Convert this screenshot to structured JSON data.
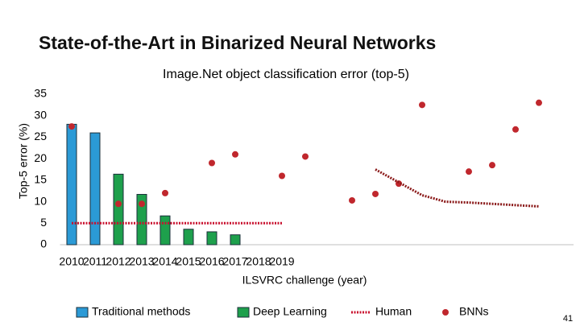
{
  "slide": {
    "title": "State-of-the-Art in Binarized Neural Networks",
    "page_number": "41"
  },
  "chart_data": {
    "type": "combo",
    "title": "Image.Net object classification error (top-5)",
    "x_label": "ILSVRC challenge (year)",
    "y_label": "Top-5 error (%)",
    "categories": [
      "2010",
      "2011",
      "2012",
      "2013",
      "2014",
      "2015",
      "2016",
      "2017",
      "2018",
      "2019",
      null,
      null,
      null,
      null,
      null,
      null,
      null,
      null,
      null,
      null,
      null
    ],
    "ylim": [
      0,
      35
    ],
    "yticks": [
      0,
      5,
      10,
      15,
      20,
      25,
      30,
      35
    ],
    "grid": false,
    "legend": "bottom",
    "series": [
      {
        "name": "Traditional methods",
        "type": "bar",
        "color": "#2b9ad6",
        "values": [
          28,
          26,
          null,
          null,
          null,
          null,
          null,
          null,
          null,
          null,
          null,
          null,
          null,
          null,
          null,
          null,
          null,
          null,
          null,
          null,
          null
        ]
      },
      {
        "name": "Deep Learning",
        "type": "bar",
        "color": "#1ea04c",
        "values": [
          null,
          null,
          16.4,
          11.7,
          6.7,
          3.6,
          3.0,
          2.3,
          null,
          null,
          null,
          null,
          null,
          null,
          null,
          null,
          null,
          null,
          null,
          null,
          null
        ]
      },
      {
        "name": "Human",
        "type": "line",
        "color": "#c8102e",
        "values": [
          5,
          5,
          5,
          5,
          5,
          5,
          5,
          5,
          5,
          5,
          null,
          null,
          null,
          null,
          null,
          null,
          null,
          null,
          null,
          null,
          null
        ]
      },
      {
        "name": "BNNs",
        "type": "scatter",
        "color": "#c0272d",
        "values": [
          27.5,
          null,
          9.5,
          9.5,
          12,
          null,
          19,
          21,
          null,
          16,
          20.5,
          null,
          10.3,
          11.8,
          14.2,
          32.5,
          null,
          17,
          18.5,
          26.8,
          33
        ]
      },
      {
        "type": "line",
        "color": "#8b1a1a",
        "values": [
          null,
          null,
          null,
          null,
          null,
          null,
          null,
          null,
          null,
          null,
          null,
          null,
          null,
          17.5,
          14.5,
          11.5,
          10,
          9.8,
          9.5,
          9.2,
          8.9
        ]
      }
    ]
  }
}
